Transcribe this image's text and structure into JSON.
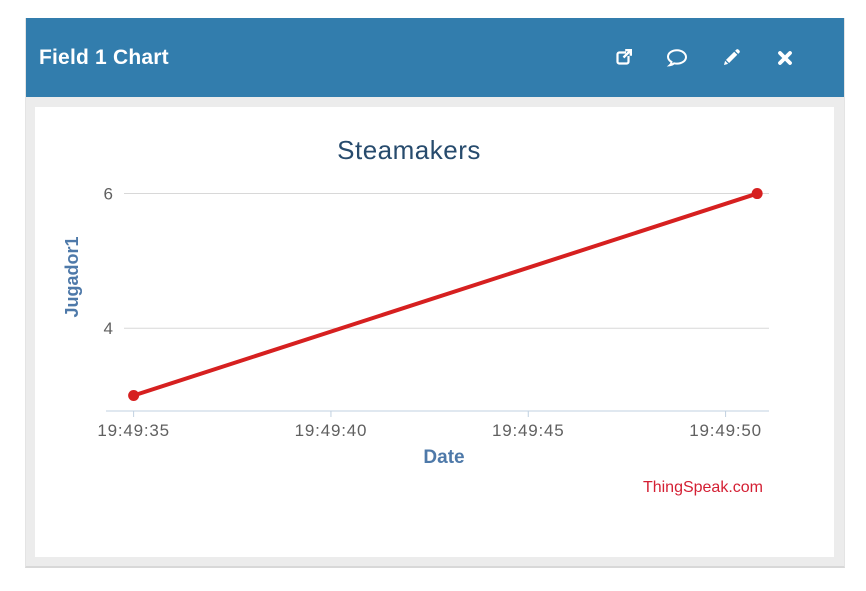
{
  "header": {
    "title": "Field 1 Chart",
    "icons": [
      "external-link",
      "comment",
      "edit-pencil",
      "close"
    ]
  },
  "colors": {
    "header_bg": "#327dad",
    "header_text": "#ffffff",
    "body_bg": "#ececec",
    "panel_bg": "#ffffff",
    "title_text": "#274b6d",
    "axis_title_text": "#4e79a9",
    "tick_text": "#606060",
    "grid_line": "#d8d8d8",
    "axis_line": "#c0d0e0",
    "series_line": "#d62020",
    "watermark_text": "#d41f33"
  },
  "chart_data": {
    "type": "line",
    "title": "Steamakers",
    "xlabel": "Date",
    "ylabel": "Jugador1",
    "legend": "none",
    "grid": "horizontal-only",
    "watermark": "ThingSpeak.com",
    "series": [
      {
        "name": "Jugador1",
        "color": "#d62020",
        "points": [
          {
            "time": "19:49:35",
            "t": 35.0,
            "value": 3
          },
          {
            "time": "19:49:51",
            "t": 50.8,
            "value": 6
          }
        ]
      }
    ],
    "x_ticks": [
      {
        "t": 35,
        "label": "19:49:35"
      },
      {
        "t": 40,
        "label": "19:49:40"
      },
      {
        "t": 45,
        "label": "19:49:45"
      },
      {
        "t": 50,
        "label": "19:49:50"
      }
    ],
    "y_ticks": [
      {
        "value": 4,
        "label": "4"
      },
      {
        "value": 6,
        "label": "6"
      }
    ],
    "x_range_seconds": [
      34.3,
      51.1
    ],
    "y_range": [
      2.77,
      6.35
    ]
  }
}
